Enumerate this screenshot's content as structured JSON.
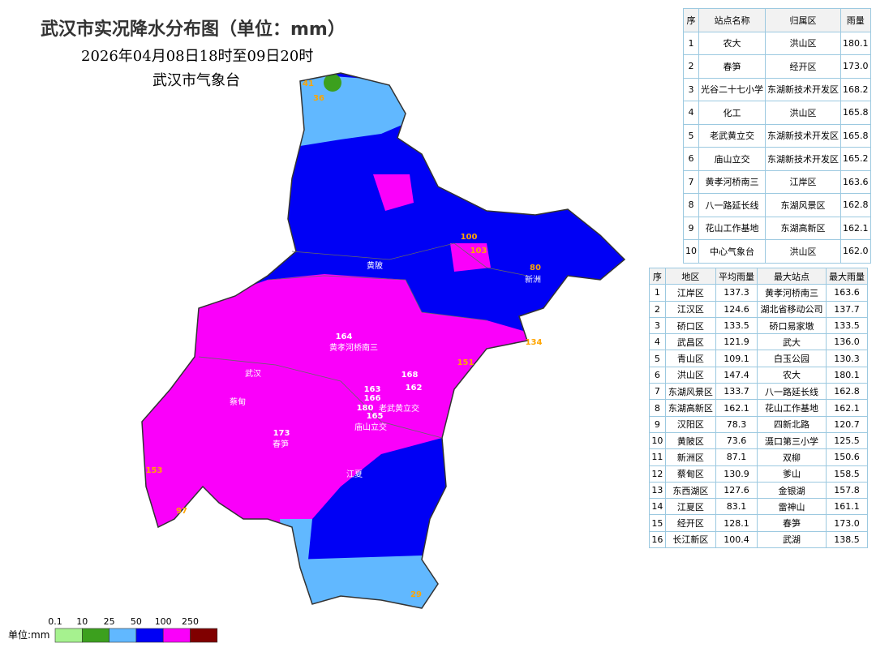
{
  "header": {
    "title": "武汉市实况降水分布图（单位：mm）",
    "period": "2026年04月08日18时至09日20时",
    "issuer": "武汉市气象台"
  },
  "station_table": {
    "columns": [
      "序",
      "站点名称",
      "归属区",
      "雨量"
    ],
    "rows": [
      [
        "1",
        "农大",
        "洪山区",
        "180.1"
      ],
      [
        "2",
        "春笋",
        "经开区",
        "173.0"
      ],
      [
        "3",
        "光谷二十七小学",
        "东湖新技术开发区",
        "168.2"
      ],
      [
        "4",
        "化工",
        "洪山区",
        "165.8"
      ],
      [
        "5",
        "老武黄立交",
        "东湖新技术开发区",
        "165.8"
      ],
      [
        "6",
        "庙山立交",
        "东湖新技术开发区",
        "165.2"
      ],
      [
        "7",
        "黄孝河桥南三",
        "江岸区",
        "163.6"
      ],
      [
        "8",
        "八一路延长线",
        "东湖风景区",
        "162.8"
      ],
      [
        "9",
        "花山工作基地",
        "东湖高新区",
        "162.1"
      ],
      [
        "10",
        "中心气象台",
        "洪山区",
        "162.0"
      ]
    ]
  },
  "district_table": {
    "columns": [
      "序",
      "地区",
      "平均雨量",
      "最大站点",
      "最大雨量"
    ],
    "rows": [
      [
        "1",
        "江岸区",
        "137.3",
        "黄孝河桥南三",
        "163.6"
      ],
      [
        "2",
        "江汉区",
        "124.6",
        "湖北省移动公司",
        "137.7"
      ],
      [
        "3",
        "硚口区",
        "133.5",
        "硚口易家墩",
        "133.5"
      ],
      [
        "4",
        "武昌区",
        "121.9",
        "武大",
        "136.0"
      ],
      [
        "5",
        "青山区",
        "109.1",
        "白玉公园",
        "130.3"
      ],
      [
        "6",
        "洪山区",
        "147.4",
        "农大",
        "180.1"
      ],
      [
        "7",
        "东湖风景区",
        "133.7",
        "八一路延长线",
        "162.8"
      ],
      [
        "8",
        "东湖高新区",
        "162.1",
        "花山工作基地",
        "162.1"
      ],
      [
        "9",
        "汉阳区",
        "78.3",
        "四新北路",
        "120.7"
      ],
      [
        "10",
        "黄陂区",
        "73.6",
        "滠口第三小学",
        "125.5"
      ],
      [
        "11",
        "新洲区",
        "87.1",
        "双柳",
        "150.6"
      ],
      [
        "12",
        "蔡甸区",
        "130.9",
        "爹山",
        "158.5"
      ],
      [
        "13",
        "东西湖区",
        "127.6",
        "金银湖",
        "157.8"
      ],
      [
        "14",
        "江夏区",
        "83.1",
        "雷神山",
        "161.1"
      ],
      [
        "15",
        "经开区",
        "128.1",
        "春笋",
        "173.0"
      ],
      [
        "16",
        "长江新区",
        "100.4",
        "武湖",
        "138.5"
      ]
    ]
  },
  "legend": {
    "unit": "单位:mm",
    "breaks": [
      "0.1",
      "10",
      "25",
      "50",
      "100",
      "250"
    ],
    "colors": [
      "#a6f28f",
      "#3ca01e",
      "#61b8ff",
      "#0000f5",
      "#fa00fa",
      "#800000"
    ]
  },
  "map_labels": [
    "黄陂",
    "新洲",
    "武汉",
    "蔡甸",
    "江夏",
    "黄孝河桥南三",
    "老武黄立交",
    "庙山立交",
    "春笋",
    "164",
    "168",
    "162",
    "163",
    "166",
    "180",
    "165",
    "173",
    "41",
    "36",
    "100",
    "103",
    "80",
    "151",
    "134",
    "153",
    "97",
    "29"
  ]
}
